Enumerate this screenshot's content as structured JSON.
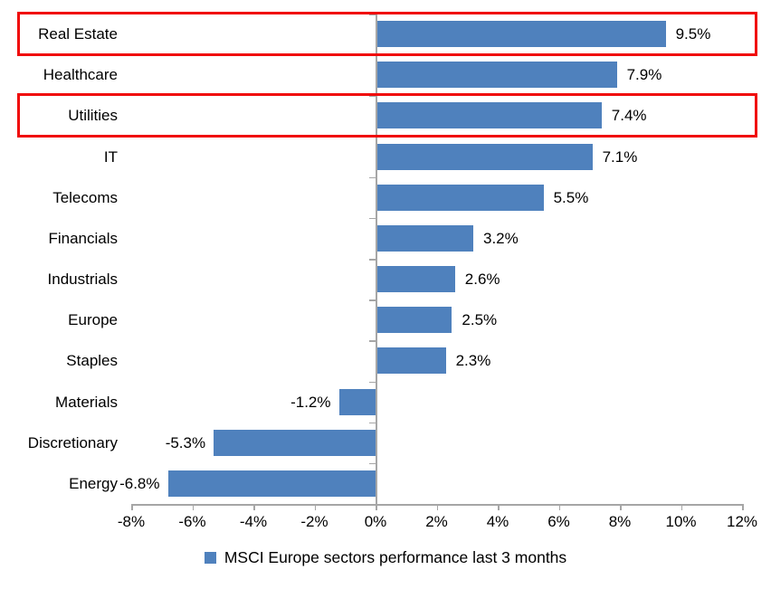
{
  "chart_data": {
    "type": "bar",
    "orientation": "horizontal",
    "categories": [
      "Real Estate",
      "Healthcare",
      "Utilities",
      "IT",
      "Telecoms",
      "Financials",
      "Industrials",
      "Europe",
      "Staples",
      "Materials",
      "Discretionary",
      "Energy"
    ],
    "values": [
      9.5,
      7.9,
      7.4,
      7.1,
      5.5,
      3.2,
      2.6,
      2.5,
      2.3,
      -1.2,
      -5.3,
      -6.8
    ],
    "data_labels": [
      "9.5%",
      "7.9%",
      "7.4%",
      "7.1%",
      "5.5%",
      "3.2%",
      "2.6%",
      "2.5%",
      "2.3%",
      "-1.2%",
      "-5.3%",
      "-6.8%"
    ],
    "xlim": [
      -8,
      12
    ],
    "x_tick_step": 2,
    "x_tick_labels": [
      "-8%",
      "-6%",
      "-4%",
      "-2%",
      "0%",
      "2%",
      "4%",
      "6%",
      "8%",
      "10%",
      "12%"
    ],
    "grid": "off",
    "bar_color": "#4f81bd",
    "axis_color": "#a6a6a6",
    "legend": {
      "position": "bottom",
      "label": "MSCI Europe sectors performance last 3 months",
      "swatch_color": "#4f81bd"
    },
    "annotations": {
      "highlighted_categories": [
        "Real Estate",
        "Utilities"
      ],
      "highlight_color": "#f00a0a"
    }
  }
}
